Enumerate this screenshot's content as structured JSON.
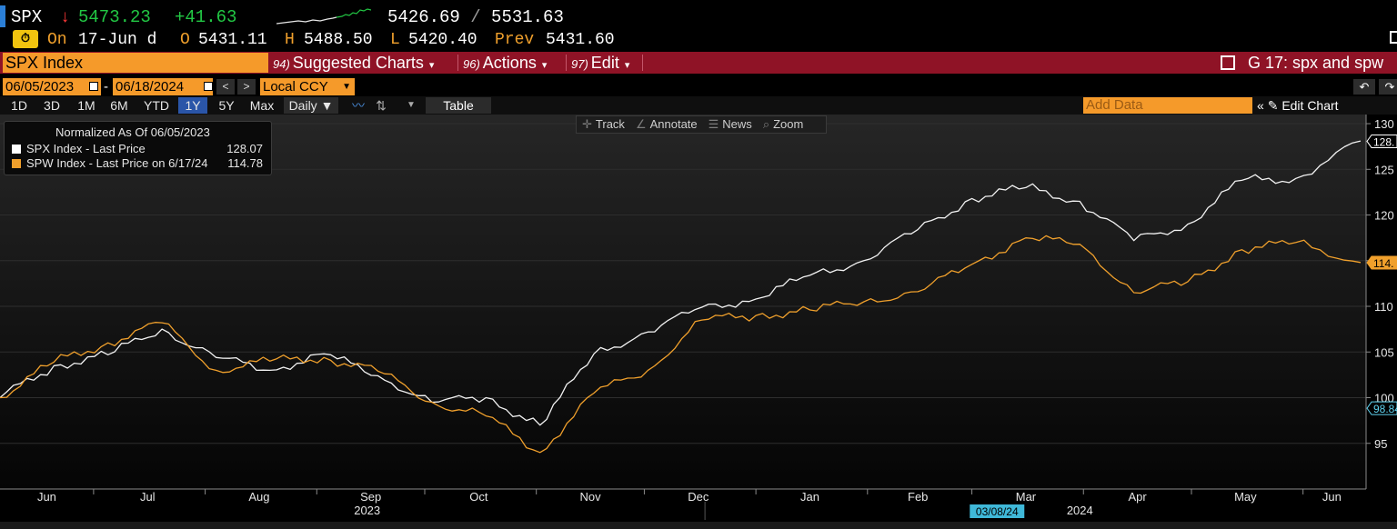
{
  "quote": {
    "ticker": "SPX",
    "direction_arrow": "↓",
    "last": "5473.23",
    "change": "+41.63",
    "range_low": "5426.69",
    "range_sep": "/",
    "range_high": "5531.63",
    "on_label": "On",
    "on_date": "17-Jun d",
    "open_label": "O",
    "open": "5431.11",
    "high_label": "H",
    "high": "5488.50",
    "low_label": "L",
    "low": "5420.40",
    "prev_label": "Prev",
    "prev": "5431.60",
    "colors": {
      "up": "#22c744",
      "down": "#ff3838",
      "label": "#f0a02c"
    }
  },
  "titlebar": {
    "security": "SPX Index",
    "menus": [
      {
        "num": "94)",
        "label": "Suggested Charts"
      },
      {
        "num": "96)",
        "label": "Actions"
      },
      {
        "num": "97)",
        "label": "Edit"
      }
    ],
    "chart_name": "G 17: spx and spw"
  },
  "dates": {
    "start": "06/05/2023",
    "dash": "-",
    "end": "06/18/2024",
    "currency": "Local CCY"
  },
  "toolbar": {
    "periods": [
      "1D",
      "3D",
      "1M",
      "6M",
      "YTD",
      "1Y",
      "5Y",
      "Max"
    ],
    "active_period": "1Y",
    "frequency": "Daily ▼",
    "table_label": "Table",
    "add_data_placeholder": "Add Data",
    "edit_chart_label": "Edit Chart",
    "collapse_icon": "«",
    "pencil_icon": "✎"
  },
  "chart_tools": [
    {
      "icon": "✛",
      "label": "Track"
    },
    {
      "icon": "∠",
      "label": "Annotate"
    },
    {
      "icon": "☰",
      "label": "News"
    },
    {
      "icon": "⌕",
      "label": "Zoom"
    }
  ],
  "legend": {
    "title": "Normalized As Of 06/05/2023",
    "rows": [
      {
        "label": "SPX Index - Last Price",
        "value": "128.07",
        "color": "#ffffff"
      },
      {
        "label": "SPW Index - Last Price on 6/17/24",
        "value": "114.78",
        "color": "#f0a02c"
      }
    ]
  },
  "chart_data": {
    "type": "line",
    "x_start": "2023-06-05",
    "x_end": "2024-06-17",
    "ylim": [
      90,
      131
    ],
    "y_ticks": [
      95,
      100,
      105,
      110,
      115,
      120,
      125,
      130
    ],
    "x_month_labels": [
      "Jun",
      "Jul",
      "Aug",
      "Sep",
      "Oct",
      "Nov",
      "Dec",
      "Jan",
      "Feb",
      "Mar",
      "Apr",
      "May",
      "Jun"
    ],
    "year_labels": [
      "2023",
      "2024"
    ],
    "crosshair_date_label": "03/08/24",
    "right_labels": [
      {
        "text": "128.",
        "value": 128.07,
        "style": "white"
      },
      {
        "text": "114.",
        "value": 114.78,
        "style": "orange"
      },
      {
        "text": "98.84",
        "value": 98.84,
        "style": "cyan"
      }
    ],
    "x": [
      "2023-06-05",
      "2023-06-20",
      "2023-07-05",
      "2023-07-20",
      "2023-08-04",
      "2023-08-19",
      "2023-09-03",
      "2023-09-18",
      "2023-10-03",
      "2023-10-18",
      "2023-11-02",
      "2023-11-17",
      "2023-12-02",
      "2023-12-17",
      "2024-01-01",
      "2024-01-16",
      "2024-01-31",
      "2024-02-15",
      "2024-03-01",
      "2024-03-16",
      "2024-03-31",
      "2024-04-15",
      "2024-04-30",
      "2024-05-15",
      "2024-05-30",
      "2024-06-17"
    ],
    "series": [
      {
        "name": "SPX Index - Last Price",
        "color": "#f2f2f2",
        "values": [
          100.0,
          103.5,
          104.7,
          107.5,
          104.4,
          103.0,
          104.8,
          102.4,
          99.5,
          100.0,
          97.0,
          104.8,
          107.2,
          109.9,
          110.8,
          113.4,
          115.0,
          118.4,
          121.8,
          123.0,
          121.5,
          117.2,
          119.0,
          123.8,
          124.0,
          128.1
        ]
      },
      {
        "name": "SPW Index - Last Price on 6/17/24",
        "color": "#f0a02c",
        "values": [
          100.0,
          103.9,
          106.0,
          108.2,
          103.0,
          104.0,
          104.4,
          102.9,
          99.5,
          98.0,
          94.0,
          100.5,
          103.0,
          108.5,
          109.0,
          109.6,
          110.5,
          111.6,
          114.6,
          117.5,
          116.8,
          111.5,
          112.7,
          116.2,
          117.0,
          114.8
        ]
      }
    ]
  }
}
